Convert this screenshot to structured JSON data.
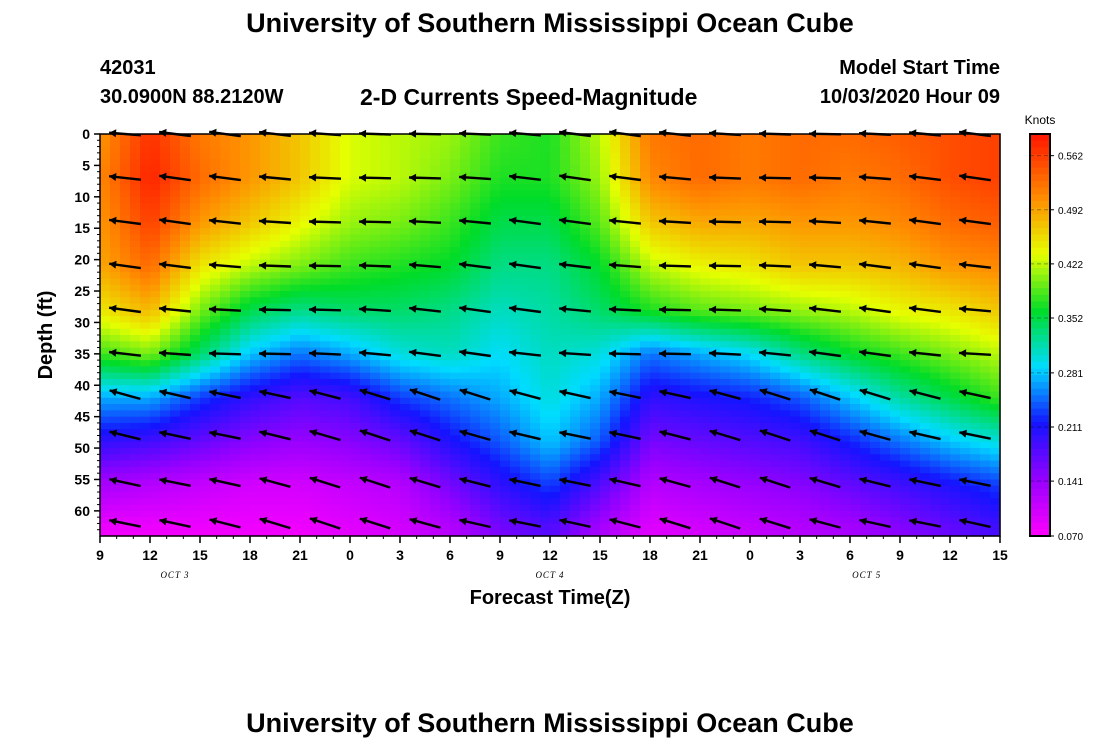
{
  "header": {
    "title": "University of Southern Mississippi Ocean Cube",
    "footer_title": "University of Southern Mississippi Ocean Cube",
    "station_id": "42031",
    "station_location": "30.0900N 88.2120W",
    "chart_title": "2-D Currents Speed-Magnitude",
    "model_start_label": "Model Start Time",
    "model_start_value": "10/03/2020 Hour 09"
  },
  "chart_data": {
    "type": "heatmap",
    "title": "2-D Currents Speed-Magnitude",
    "xlabel": "Forecast Time(Z)",
    "ylabel": "Depth (ft)",
    "x_tick_labels": [
      "9",
      "12",
      "15",
      "18",
      "21",
      "0",
      "3",
      "6",
      "9",
      "12",
      "15",
      "18",
      "21",
      "0",
      "3",
      "6",
      "9",
      "12",
      "15"
    ],
    "x_hour_start": 9,
    "x_hour_end": 63,
    "x_date_labels": [
      {
        "label": "OCT 3",
        "at_hour": 13.5
      },
      {
        "label": "OCT 4",
        "at_hour": 36
      },
      {
        "label": "OCT 5",
        "at_hour": 55
      }
    ],
    "y_tick_labels": [
      "0",
      "5",
      "10",
      "15",
      "20",
      "25",
      "30",
      "35",
      "40",
      "45",
      "50",
      "55",
      "60"
    ],
    "ylim": [
      0,
      64
    ],
    "y_inverted": true,
    "colorbar": {
      "label": "Knots",
      "ticks": [
        "0.562",
        "0.492",
        "0.422",
        "0.352",
        "0.281",
        "0.211",
        "0.141",
        "0.070"
      ],
      "range": [
        0.07,
        0.59
      ]
    },
    "vector_times": [
      10.5,
      13.5,
      16.5,
      19.5,
      22.5,
      25.5,
      28.5,
      31.5,
      34.5,
      37.5,
      40.5,
      43.5,
      46.5,
      49.5,
      52.5,
      55.5,
      58.5,
      61.5
    ],
    "vector_depths": [
      0,
      7,
      14,
      21,
      28,
      35,
      41.5,
      48,
      55.5,
      62
    ],
    "speed_grid": {
      "times": [
        9,
        12,
        15,
        18,
        21,
        24,
        27,
        30,
        33,
        36,
        39,
        42,
        45,
        48,
        51,
        54,
        57,
        60,
        63
      ],
      "depths": [
        0,
        7,
        14,
        21,
        28,
        35,
        42,
        49,
        56,
        63
      ],
      "values": [
        [
          0.5,
          0.57,
          0.52,
          0.5,
          0.47,
          0.43,
          0.42,
          0.41,
          0.38,
          0.37,
          0.42,
          0.52,
          0.53,
          0.52,
          0.53,
          0.53,
          0.54,
          0.55,
          0.56
        ],
        [
          0.51,
          0.58,
          0.53,
          0.5,
          0.47,
          0.43,
          0.42,
          0.4,
          0.37,
          0.37,
          0.41,
          0.51,
          0.53,
          0.52,
          0.53,
          0.52,
          0.53,
          0.55,
          0.56
        ],
        [
          0.5,
          0.56,
          0.5,
          0.47,
          0.44,
          0.41,
          0.4,
          0.38,
          0.35,
          0.35,
          0.39,
          0.47,
          0.49,
          0.49,
          0.5,
          0.5,
          0.51,
          0.53,
          0.54
        ],
        [
          0.49,
          0.53,
          0.45,
          0.42,
          0.4,
          0.38,
          0.37,
          0.36,
          0.33,
          0.33,
          0.36,
          0.42,
          0.44,
          0.45,
          0.47,
          0.47,
          0.48,
          0.5,
          0.51
        ],
        [
          0.45,
          0.48,
          0.4,
          0.35,
          0.33,
          0.34,
          0.34,
          0.33,
          0.31,
          0.32,
          0.34,
          0.37,
          0.39,
          0.4,
          0.41,
          0.42,
          0.44,
          0.45,
          0.47
        ],
        [
          0.38,
          0.4,
          0.34,
          0.28,
          0.25,
          0.27,
          0.3,
          0.31,
          0.29,
          0.31,
          0.3,
          0.25,
          0.27,
          0.29,
          0.33,
          0.36,
          0.38,
          0.4,
          0.42
        ],
        [
          0.27,
          0.27,
          0.23,
          0.2,
          0.18,
          0.19,
          0.23,
          0.25,
          0.27,
          0.3,
          0.27,
          0.2,
          0.21,
          0.22,
          0.24,
          0.28,
          0.32,
          0.35,
          0.38
        ],
        [
          0.2,
          0.19,
          0.17,
          0.15,
          0.14,
          0.15,
          0.17,
          0.21,
          0.24,
          0.28,
          0.24,
          0.16,
          0.17,
          0.18,
          0.19,
          0.22,
          0.25,
          0.28,
          0.3
        ],
        [
          0.13,
          0.12,
          0.11,
          0.1,
          0.1,
          0.11,
          0.12,
          0.16,
          0.2,
          0.23,
          0.18,
          0.12,
          0.13,
          0.14,
          0.15,
          0.17,
          0.19,
          0.21,
          0.23
        ],
        [
          0.08,
          0.08,
          0.08,
          0.08,
          0.08,
          0.09,
          0.1,
          0.12,
          0.16,
          0.18,
          0.13,
          0.09,
          0.1,
          0.11,
          0.12,
          0.13,
          0.15,
          0.17,
          0.19
        ]
      ]
    }
  }
}
